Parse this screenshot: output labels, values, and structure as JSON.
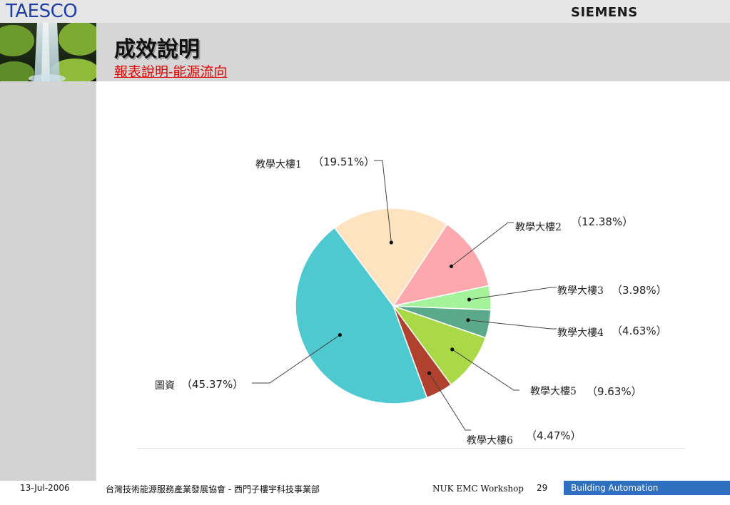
{
  "header": {
    "brand": "TAESCO",
    "company_logo": "SIEMENS",
    "title": "成效說明",
    "subtitle": "報表說明-能源流向",
    "photo_icon": "waterfall-photo"
  },
  "chart_data": {
    "type": "pie",
    "title": "",
    "slices": [
      {
        "label": "教學大樓1",
        "pct_text": "（19.51%）",
        "value": 19.51,
        "color": "#fde3bf"
      },
      {
        "label": "教學大樓2",
        "pct_text": "（12.38%）",
        "value": 12.38,
        "color": "#fda8ad"
      },
      {
        "label": "教學大樓3",
        "pct_text": "（3.98%）",
        "value": 3.98,
        "color": "#a4f29a"
      },
      {
        "label": "教學大樓4",
        "pct_text": "（4.63%）",
        "value": 4.63,
        "color": "#5aa98b"
      },
      {
        "label": "教學大樓5",
        "pct_text": "（9.63%）",
        "value": 9.63,
        "color": "#a9d946"
      },
      {
        "label": "教學大樓6",
        "pct_text": "（4.47%）",
        "value": 4.47,
        "color": "#b0412f"
      },
      {
        "label": "圖資",
        "pct_text": "（45.37%）",
        "value": 45.37,
        "color": "#4ec9cf"
      }
    ]
  },
  "footer": {
    "date": "13-Jul-2006",
    "organization": "台灣技術能源服務產業發展協會 - 西門子樓宇科技事業部",
    "event": "NUK EMC Workshop",
    "page": "29",
    "tag": "Building Automation"
  }
}
